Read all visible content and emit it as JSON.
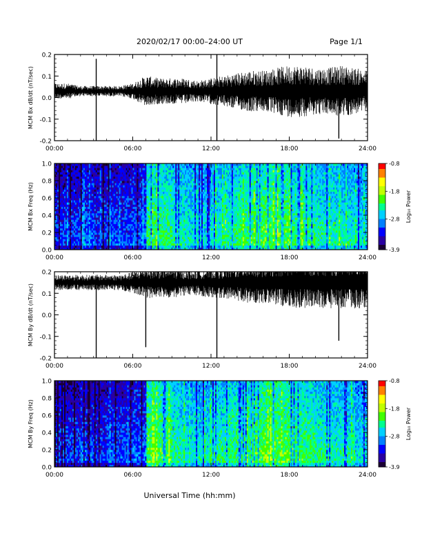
{
  "header": {
    "title": "2020/02/17  00:00–24:00 UT",
    "page": "Page 1/1"
  },
  "footer": {
    "xlabel": "Universal Time (hh:mm)"
  },
  "colors": {
    "trace": "#000000",
    "colormap": [
      "#1a0033",
      "#2a00a0",
      "#0000ff",
      "#0080ff",
      "#00d0ff",
      "#00ff90",
      "#40ff00",
      "#c0ff00",
      "#ffff00",
      "#ff8000",
      "#ff0000"
    ]
  },
  "chart_data": [
    {
      "type": "line",
      "ylabel": "MCM Bx dB/dt (nT/sec)",
      "xlim": [
        "00:00",
        "24:00"
      ],
      "ylim": [
        -0.2,
        0.2
      ],
      "xticks": [
        "00:00",
        "06:00",
        "12:00",
        "18:00",
        "24:00"
      ],
      "yticks": [
        "-0.2",
        "-0.1",
        "0.0",
        "0.1",
        "0.2"
      ],
      "series": [
        {
          "x_hours": [
            0,
            1,
            2,
            3,
            4,
            5,
            6,
            7,
            8,
            9,
            10,
            11,
            12,
            13,
            14,
            15,
            16,
            17,
            18,
            19,
            20,
            21,
            22,
            23,
            24
          ],
          "baseline": [
            0.03,
            0.03,
            0.03,
            0.03,
            0.03,
            0.03,
            0.03,
            0.03,
            0.03,
            0.03,
            0.03,
            0.03,
            0.03,
            0.03,
            0.03,
            0.03,
            0.03,
            0.03,
            0.03,
            0.03,
            0.03,
            0.03,
            0.03,
            0.03,
            0.03
          ],
          "envelope": [
            0.03,
            0.03,
            0.02,
            0.02,
            0.02,
            0.02,
            0.03,
            0.06,
            0.05,
            0.05,
            0.05,
            0.04,
            0.05,
            0.06,
            0.07,
            0.08,
            0.08,
            0.09,
            0.1,
            0.1,
            0.09,
            0.09,
            0.1,
            0.09,
            0.08
          ],
          "spikes": [
            {
              "t": 3.2,
              "min": -0.2,
              "max": 0.18
            },
            {
              "t": 12.45,
              "min": -0.2,
              "max": 0.21
            },
            {
              "t": 21.8,
              "min": -0.19,
              "max": 0.08
            }
          ]
        }
      ]
    },
    {
      "type": "heatmap",
      "ylabel": "MCM Bx Freq (Hz)",
      "xlim": [
        "00:00",
        "24:00"
      ],
      "ylim": [
        0.0,
        1.0
      ],
      "xticks": [
        "00:00",
        "06:00",
        "12:00",
        "18:00",
        "24:00"
      ],
      "yticks": [
        "0.0",
        "0.2",
        "0.4",
        "0.6",
        "0.8",
        "1.0"
      ],
      "colorbar": {
        "label": "Log₁₀ Power",
        "min": -3.9,
        "max": -0.8,
        "ticks": [
          "-0.8",
          "-1.8",
          "-2.8",
          "-3.9"
        ]
      },
      "activity_by_hour": [
        0.25,
        0.25,
        0.28,
        0.25,
        0.27,
        0.27,
        0.3,
        0.55,
        0.55,
        0.5,
        0.48,
        0.45,
        0.5,
        0.52,
        0.55,
        0.58,
        0.6,
        0.6,
        0.55,
        0.55,
        0.5,
        0.5,
        0.48,
        0.45
      ]
    },
    {
      "type": "line",
      "ylabel": "MCM By dB/dt (nT/sec)",
      "xlim": [
        "00:00",
        "24:00"
      ],
      "ylim": [
        -0.2,
        0.2
      ],
      "xticks": [
        "00:00",
        "06:00",
        "12:00",
        "18:00",
        "24:00"
      ],
      "yticks": [
        "-0.2",
        "-0.1",
        "0.0",
        "0.1",
        "0.2"
      ],
      "series": [
        {
          "x_hours": [
            0,
            1,
            2,
            3,
            4,
            5,
            6,
            7,
            8,
            9,
            10,
            11,
            12,
            13,
            14,
            15,
            16,
            17,
            18,
            19,
            20,
            21,
            22,
            23,
            24
          ],
          "baseline": [
            0.15,
            0.15,
            0.15,
            0.15,
            0.15,
            0.15,
            0.15,
            0.15,
            0.15,
            0.15,
            0.15,
            0.15,
            0.15,
            0.15,
            0.15,
            0.15,
            0.15,
            0.15,
            0.15,
            0.15,
            0.15,
            0.15,
            0.15,
            0.15,
            0.15
          ],
          "envelope": [
            0.03,
            0.03,
            0.03,
            0.03,
            0.03,
            0.03,
            0.04,
            0.06,
            0.06,
            0.06,
            0.05,
            0.05,
            0.06,
            0.06,
            0.07,
            0.08,
            0.08,
            0.09,
            0.1,
            0.1,
            0.1,
            0.1,
            0.1,
            0.1,
            0.1
          ],
          "spikes": [
            {
              "t": 3.2,
              "min": -0.2,
              "max": 0.15
            },
            {
              "t": 7.0,
              "min": -0.15,
              "max": 0.2
            },
            {
              "t": 12.45,
              "min": -0.2,
              "max": 0.2
            },
            {
              "t": 21.8,
              "min": -0.12,
              "max": 0.2
            }
          ]
        }
      ]
    },
    {
      "type": "heatmap",
      "ylabel": "MCM By Freq (Hz)",
      "xlim": [
        "00:00",
        "24:00"
      ],
      "ylim": [
        0.0,
        1.0
      ],
      "xticks": [
        "00:00",
        "06:00",
        "12:00",
        "18:00",
        "24:00"
      ],
      "yticks": [
        "0.0",
        "0.2",
        "0.4",
        "0.6",
        "0.8",
        "1.0"
      ],
      "colorbar": {
        "label": "Log₁₀ Power",
        "min": -3.9,
        "max": -0.8,
        "ticks": [
          "-0.8",
          "-1.8",
          "-2.8",
          "-3.9"
        ]
      },
      "activity_by_hour": [
        0.25,
        0.25,
        0.28,
        0.25,
        0.27,
        0.27,
        0.3,
        0.6,
        0.58,
        0.52,
        0.48,
        0.47,
        0.52,
        0.55,
        0.55,
        0.6,
        0.62,
        0.6,
        0.58,
        0.55,
        0.52,
        0.5,
        0.5,
        0.45
      ]
    }
  ]
}
